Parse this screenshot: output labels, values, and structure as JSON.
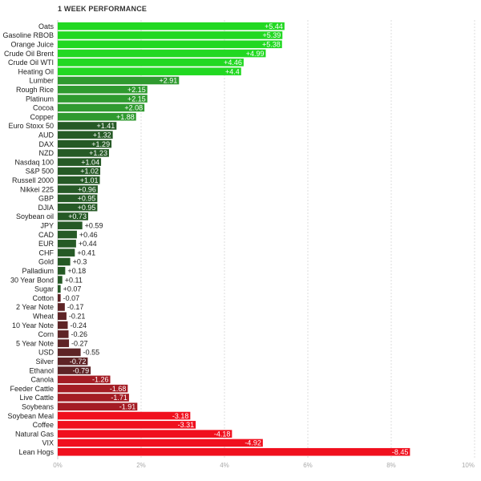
{
  "chart_data": {
    "type": "bar",
    "orientation": "horizontal",
    "title": "1 WEEK PERFORMANCE",
    "categories": [
      "Oats",
      "Gasoline RBOB",
      "Orange Juice",
      "Crude Oil Brent",
      "Crude Oil WTI",
      "Heating Oil",
      "Lumber",
      "Rough Rice",
      "Platinum",
      "Cocoa",
      "Copper",
      "Euro Stoxx 50",
      "AUD",
      "DAX",
      "NZD",
      "Nasdaq 100",
      "S&P 500",
      "Russell 2000",
      "Nikkei 225",
      "GBP",
      "DJIA",
      "Soybean oil",
      "JPY",
      "CAD",
      "EUR",
      "CHF",
      "Gold",
      "Palladium",
      "30 Year Bond",
      "Sugar",
      "Cotton",
      "2 Year Note",
      "Wheat",
      "10 Year Note",
      "Corn",
      "5 Year Note",
      "USD",
      "Silver",
      "Ethanol",
      "Canola",
      "Feeder Cattle",
      "Live Cattle",
      "Soybeans",
      "Soybean Meal",
      "Coffee",
      "Natural Gas",
      "VIX",
      "Lean Hogs"
    ],
    "values": [
      5.44,
      5.39,
      5.38,
      4.99,
      4.46,
      4.4,
      2.91,
      2.15,
      2.15,
      2.08,
      1.88,
      1.41,
      1.32,
      1.29,
      1.23,
      1.04,
      1.02,
      1.01,
      0.96,
      0.95,
      0.95,
      0.73,
      0.59,
      0.46,
      0.44,
      0.41,
      0.3,
      0.18,
      0.11,
      0.07,
      -0.07,
      -0.17,
      -0.21,
      -0.24,
      -0.26,
      -0.27,
      -0.55,
      -0.72,
      -0.79,
      -1.26,
      -1.68,
      -1.71,
      -1.91,
      -3.18,
      -3.31,
      -4.18,
      -4.92,
      -8.45
    ],
    "value_labels": [
      "+5.44",
      "+5.39",
      "+5.38",
      "+4.99",
      "+4.46",
      "+4.4",
      "+2.91",
      "+2.15",
      "+2.15",
      "+2.08",
      "+1.88",
      "+1.41",
      "+1.32",
      "+1.29",
      "+1.23",
      "+1.04",
      "+1.02",
      "+1.01",
      "+0.96",
      "+0.95",
      "+0.95",
      "+0.73",
      "+0.59",
      "+0.46",
      "+0.44",
      "+0.41",
      "+0.3",
      "+0.18",
      "+0.11",
      "+0.07",
      "-0.07",
      "-0.17",
      "-0.21",
      "-0.24",
      "-0.26",
      "-0.27",
      "-0.55",
      "-0.72",
      "-0.79",
      "-1.26",
      "-1.68",
      "-1.71",
      "-1.91",
      "-3.18",
      "-3.31",
      "-4.18",
      "-4.92",
      "-8.45"
    ],
    "x_ticks": [
      "0%",
      "2%",
      "4%",
      "6%",
      "8%",
      "10%"
    ],
    "xlim": [
      0,
      10
    ],
    "bar_length": "absolute value",
    "grid": true,
    "colors": {
      "positive_bright": "#22d822",
      "positive_mid": "#2f9a2f",
      "positive_dark": "#265a26",
      "negative_dark": "#5e2426",
      "negative_mid": "#a41c24",
      "negative_bright": "#f0101e",
      "grid": "#dddddd"
    }
  }
}
